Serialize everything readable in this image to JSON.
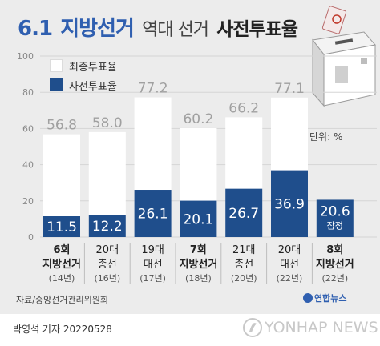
{
  "title": {
    "number": "6.1",
    "main": "지방선거",
    "middle": "역대 선거",
    "end": "사전투표율"
  },
  "legend": [
    {
      "label": "최종투표율",
      "color": "#ffffff"
    },
    {
      "label": "사전투표율",
      "color": "#1f4e8c"
    }
  ],
  "unit_label": "단위: %",
  "source": "자료/중앙선거관리위원회",
  "agency_mini": "연합뉴스",
  "byline": "박영석 기자  20220528",
  "watermark": "YONHAP NEWS",
  "chart_data": {
    "type": "bar",
    "ylim": [
      0,
      100
    ],
    "yticks": [
      0,
      20,
      40,
      60,
      80,
      100
    ],
    "grid": true,
    "legend_position": "top-left",
    "categories": [
      {
        "line1": "6회",
        "line2": "지방선거",
        "line3": "(14년)",
        "bold": true
      },
      {
        "line1": "20대",
        "line2": "총선",
        "line3": "(16년)",
        "bold": false
      },
      {
        "line1": "19대",
        "line2": "대선",
        "line3": "(17년)",
        "bold": false
      },
      {
        "line1": "7회",
        "line2": "지방선거",
        "line3": "(18년)",
        "bold": true
      },
      {
        "line1": "21대",
        "line2": "총선",
        "line3": "(20년)",
        "bold": false
      },
      {
        "line1": "20대",
        "line2": "대선",
        "line3": "(22년)",
        "bold": false
      },
      {
        "line1": "8회",
        "line2": "지방선거",
        "line3": "(22년)",
        "bold": true
      }
    ],
    "series": [
      {
        "name": "최종투표율",
        "values": [
          56.8,
          58.0,
          77.2,
          60.2,
          66.2,
          77.1,
          null
        ],
        "labels": [
          "56.8",
          "58.0",
          "77.2",
          "60.2",
          "66.2",
          "77.1",
          ""
        ]
      },
      {
        "name": "사전투표율",
        "values": [
          11.5,
          12.2,
          26.1,
          20.1,
          26.7,
          36.9,
          20.6
        ],
        "labels": [
          "11.5",
          "12.2",
          "26.1",
          "20.1",
          "26.7",
          "36.9",
          "20.6"
        ]
      }
    ],
    "annotations": [
      {
        "category_index": 6,
        "text": "잠정"
      }
    ]
  }
}
